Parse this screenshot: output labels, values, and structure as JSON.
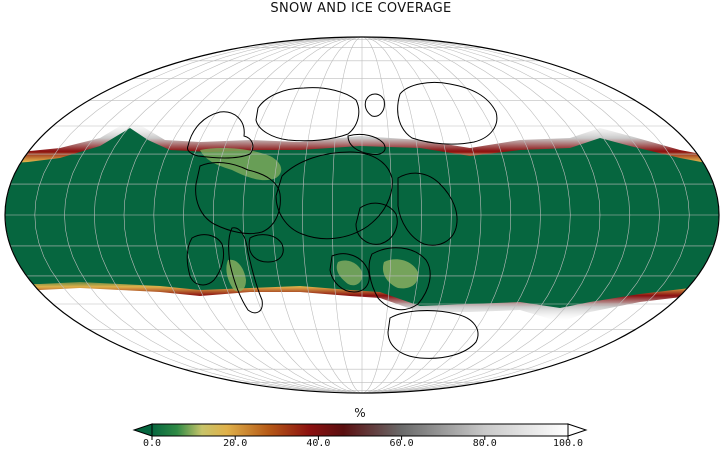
{
  "title": "SNOW AND ICE COVERAGE",
  "colorbar": {
    "unit": "%",
    "ticks": [
      "0.0",
      "20.0",
      "40.0",
      "60.0",
      "80.0",
      "100.0"
    ],
    "min": 0,
    "max": 100,
    "stops": [
      {
        "value": 0,
        "color": "#06663f"
      },
      {
        "value": 6,
        "color": "#2f8a45"
      },
      {
        "value": 12,
        "color": "#c7c46a"
      },
      {
        "value": 18,
        "color": "#e0b14a"
      },
      {
        "value": 28,
        "color": "#b65a17"
      },
      {
        "value": 38,
        "color": "#8b1010"
      },
      {
        "value": 46,
        "color": "#5a0f10"
      },
      {
        "value": 60,
        "color": "#6a6a6a"
      },
      {
        "value": 80,
        "color": "#c9c9c9"
      },
      {
        "value": 100,
        "color": "#ffffff"
      }
    ],
    "extend": "both"
  },
  "colors": {
    "ice_free": "#06663f",
    "ice_edge": "#8b1010",
    "coastline": "#000000",
    "graticule": "#bdbdbd"
  }
}
